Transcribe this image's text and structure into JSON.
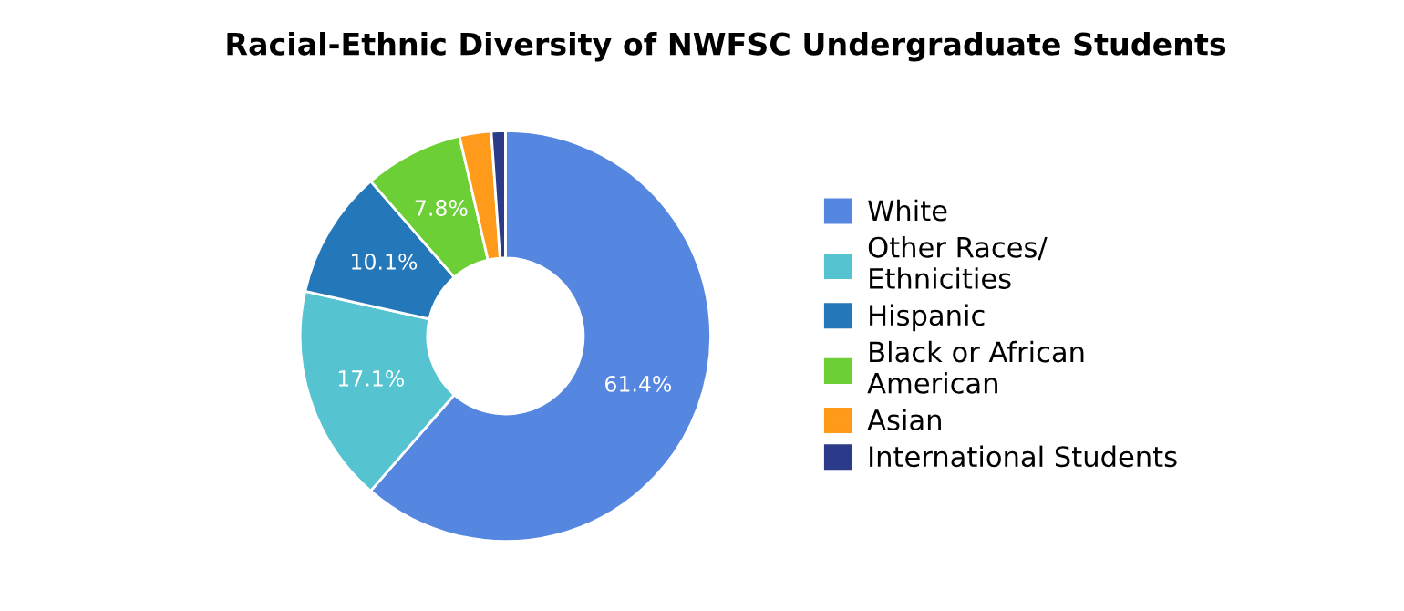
{
  "chart_data": {
    "type": "donut",
    "title": "Racial-Ethnic Diversity of NWFSC Undergraduate Students",
    "categories": [
      "White",
      "Other Races/ Ethnicities",
      "Hispanic",
      "Black or African American",
      "Asian",
      "International Students"
    ],
    "values": [
      61.4,
      17.1,
      10.1,
      7.8,
      2.5,
      1.1
    ],
    "colors": [
      "#5586e0",
      "#56c3d1",
      "#2477b8",
      "#6ccf35",
      "#ff9a1a",
      "#2c3a8a"
    ],
    "value_labels": [
      "61.4%",
      "17.1%",
      "10.1%",
      "7.8%",
      null,
      null
    ],
    "legend": "right"
  }
}
